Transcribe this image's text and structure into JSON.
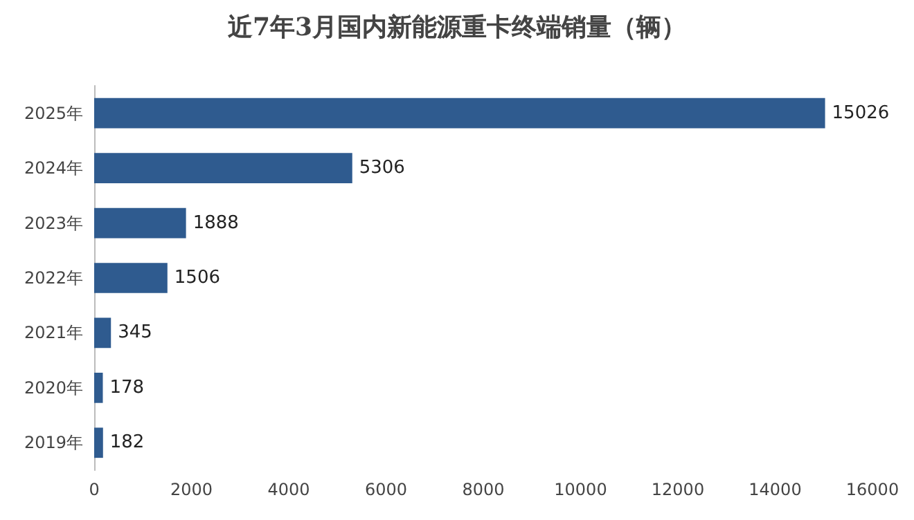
{
  "chart_data": {
    "type": "bar",
    "orientation": "horizontal",
    "title": "近7年3月国内新能源重卡终端销量（辆）",
    "categories": [
      "2025年",
      "2024年",
      "2023年",
      "2022年",
      "2021年",
      "2020年",
      "2019年"
    ],
    "values": [
      15026,
      5306,
      1888,
      1506,
      345,
      178,
      182
    ],
    "color": "#2f5b8f",
    "xlim": [
      0,
      16000
    ],
    "xticks": [
      0,
      2000,
      4000,
      6000,
      8000,
      10000,
      12000,
      14000,
      16000
    ],
    "grid": false,
    "data_labels": true
  }
}
